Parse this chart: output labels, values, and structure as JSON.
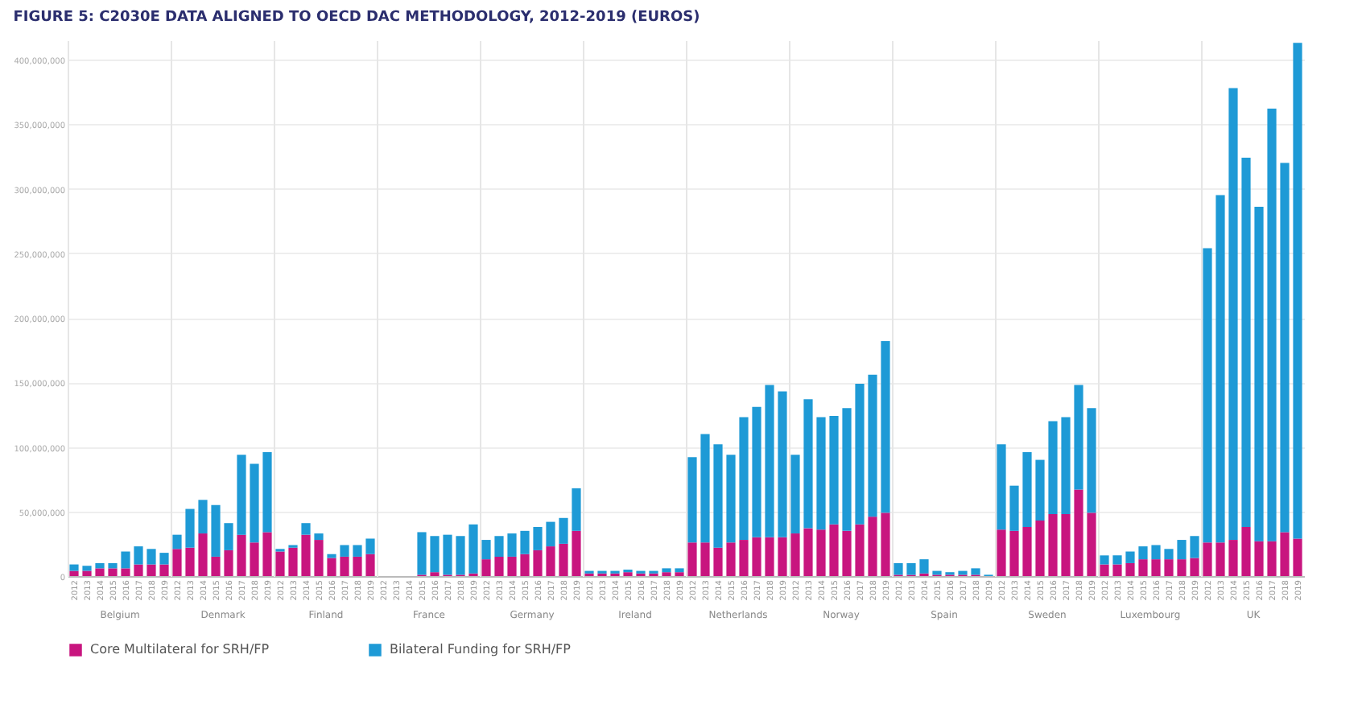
{
  "chart_data": [
    {
      "type": "bar",
      "title": "FIGURE 5: C2030E DATA ALIGNED TO OECD DAC METHODOLOGY, 2012-2019 (EUROS)",
      "xlabel": "Belgium",
      "categories": [
        "2012",
        "2013",
        "2014",
        "2015",
        "2016",
        "2017",
        "2018",
        "2019"
      ],
      "stacked": true,
      "grid": "y",
      "legend": "bottom",
      "ylim": [
        0,
        415000000
      ],
      "yticks": [
        0,
        {
          "value": 50000000,
          "label": "50,000,000"
        },
        {
          "value": 100000000,
          "label": "100,000,000"
        },
        {
          "value": 150000000,
          "label": "150,000,000"
        },
        {
          "value": 200000000,
          "label": "200,000,000"
        },
        {
          "value": 250000000,
          "label": "250,000,000"
        },
        {
          "value": 300000000,
          "label": "300,000,000"
        },
        {
          "value": 350000000,
          "label": "350,000,000"
        },
        {
          "value": 400000000,
          "label": "400,000,000"
        }
      ],
      "series": [
        {
          "name": "Core Multilateral for SRH/FP",
          "color": "#c8157f",
          "values": [
            4000000,
            4000000,
            6000000,
            6000000,
            6000000,
            9000000,
            9000000,
            9000000
          ]
        },
        {
          "name": "Bilateral Funding for SRH/FP",
          "color": "#1e9ad6",
          "values": [
            5000000,
            4000000,
            4000000,
            4000000,
            13000000,
            14000000,
            12000000,
            9000000
          ]
        }
      ]
    },
    {
      "type": "bar",
      "xlabel": "Denmark",
      "categories": [
        "2012",
        "2013",
        "2014",
        "2015",
        "2016",
        "2017",
        "2018",
        "2019"
      ],
      "stacked": true,
      "grid": "y",
      "tick_labels": "x",
      "ylim": [
        0,
        415000000
      ],
      "yticks": [
        0,
        50000000,
        100000000,
        150000000,
        200000000,
        250000000,
        300000000,
        350000000,
        400000000
      ],
      "series": [
        {
          "color": "#c8157f",
          "values": [
            21000000,
            22000000,
            33000000,
            15000000,
            20000000,
            32000000,
            26000000,
            34000000
          ]
        },
        {
          "color": "#1e9ad6",
          "values": [
            11000000,
            30000000,
            26000000,
            40000000,
            21000000,
            62000000,
            61000000,
            62000000
          ]
        }
      ]
    },
    {
      "type": "bar",
      "xlabel": "Finland",
      "categories": [
        "2012",
        "2013",
        "2014",
        "2015",
        "2016",
        "2017",
        "2018",
        "2019"
      ],
      "stacked": true,
      "grid": "y",
      "tick_labels": "x",
      "ylim": [
        0,
        415000000
      ],
      "yticks": [
        0,
        50000000,
        100000000,
        150000000,
        200000000,
        250000000,
        300000000,
        350000000,
        400000000
      ],
      "series": [
        {
          "color": "#c8157f",
          "values": [
            19000000,
            22000000,
            32000000,
            28000000,
            14000000,
            15000000,
            15000000,
            17000000
          ]
        },
        {
          "color": "#1e9ad6",
          "values": [
            2000000,
            2000000,
            9000000,
            5000000,
            3000000,
            9000000,
            9000000,
            12000000
          ]
        }
      ]
    },
    {
      "type": "bar",
      "xlabel": "France",
      "categories": [
        "2012",
        "2013",
        "2014",
        "2015",
        "2016",
        "2017",
        "2018",
        "2019"
      ],
      "stacked": true,
      "grid": "y",
      "tick_labels": "x",
      "ylim": [
        0,
        415000000
      ],
      "yticks": [
        0,
        50000000,
        100000000,
        150000000,
        200000000,
        250000000,
        300000000,
        350000000,
        400000000
      ],
      "series": [
        {
          "color": "#c8157f",
          "values": [
            0,
            0,
            0,
            1000000,
            3000000,
            1000000,
            1000000,
            2000000
          ]
        },
        {
          "color": "#1e9ad6",
          "values": [
            0,
            0,
            0,
            33000000,
            28000000,
            31000000,
            30000000,
            38000000
          ]
        }
      ]
    },
    {
      "type": "bar",
      "xlabel": "Germany",
      "categories": [
        "2012",
        "2013",
        "2014",
        "2015",
        "2016",
        "2017",
        "2018",
        "2019"
      ],
      "stacked": true,
      "grid": "y",
      "tick_labels": "x",
      "ylim": [
        0,
        415000000
      ],
      "yticks": [
        0,
        50000000,
        100000000,
        150000000,
        200000000,
        250000000,
        300000000,
        350000000,
        400000000
      ],
      "series": [
        {
          "color": "#c8157f",
          "values": [
            13000000,
            15000000,
            15000000,
            17000000,
            20000000,
            23000000,
            25000000,
            35000000
          ]
        },
        {
          "color": "#1e9ad6",
          "values": [
            15000000,
            16000000,
            18000000,
            18000000,
            18000000,
            19000000,
            20000000,
            33000000
          ]
        }
      ]
    },
    {
      "type": "bar",
      "xlabel": "Ireland",
      "categories": [
        "2012",
        "2013",
        "2014",
        "2015",
        "2016",
        "2017",
        "2018",
        "2019"
      ],
      "stacked": true,
      "grid": "y",
      "tick_labels": "x",
      "ylim": [
        0,
        415000000
      ],
      "yticks": [
        0,
        50000000,
        100000000,
        150000000,
        200000000,
        250000000,
        300000000,
        350000000,
        400000000
      ],
      "series": [
        {
          "color": "#c8157f",
          "values": [
            2000000,
            2000000,
            2000000,
            3000000,
            2000000,
            2000000,
            3000000,
            3000000
          ]
        },
        {
          "color": "#1e9ad6",
          "values": [
            2000000,
            2000000,
            2000000,
            2000000,
            2000000,
            2000000,
            3000000,
            3000000
          ]
        }
      ]
    },
    {
      "type": "bar",
      "xlabel": "Netherlands",
      "categories": [
        "2012",
        "2013",
        "2014",
        "2015",
        "2016",
        "2017",
        "2018",
        "2019"
      ],
      "stacked": true,
      "grid": "y",
      "tick_labels": "x",
      "ylim": [
        0,
        415000000
      ],
      "yticks": [
        0,
        50000000,
        100000000,
        150000000,
        200000000,
        250000000,
        300000000,
        350000000,
        400000000
      ],
      "series": [
        {
          "color": "#c8157f",
          "values": [
            26000000,
            26000000,
            22000000,
            26000000,
            28000000,
            30000000,
            30000000,
            30000000
          ]
        },
        {
          "color": "#1e9ad6",
          "values": [
            66000000,
            84000000,
            80000000,
            68000000,
            95000000,
            101000000,
            118000000,
            113000000
          ]
        }
      ]
    },
    {
      "type": "bar",
      "xlabel": "Norway",
      "categories": [
        "2012",
        "2013",
        "2014",
        "2015",
        "2016",
        "2017",
        "2018",
        "2019"
      ],
      "stacked": true,
      "grid": "y",
      "tick_labels": "x",
      "ylim": [
        0,
        415000000
      ],
      "yticks": [
        0,
        50000000,
        100000000,
        150000000,
        200000000,
        250000000,
        300000000,
        350000000,
        400000000
      ],
      "series": [
        {
          "color": "#c8157f",
          "values": [
            33000000,
            37000000,
            36000000,
            40000000,
            35000000,
            40000000,
            46000000,
            49000000
          ]
        },
        {
          "color": "#1e9ad6",
          "values": [
            61000000,
            100000000,
            87000000,
            84000000,
            95000000,
            109000000,
            110000000,
            133000000
          ]
        }
      ]
    },
    {
      "type": "bar",
      "xlabel": "Spain",
      "categories": [
        "2012",
        "2013",
        "2014",
        "2015",
        "2016",
        "2017",
        "2018",
        "2019"
      ],
      "stacked": true,
      "grid": "y",
      "tick_labels": "x",
      "ylim": [
        0,
        415000000
      ],
      "yticks": [
        0,
        50000000,
        100000000,
        150000000,
        200000000,
        250000000,
        300000000,
        350000000,
        400000000
      ],
      "series": [
        {
          "color": "#c8157f",
          "values": [
            1000000,
            1000000,
            2000000,
            1000000,
            1000000,
            1000000,
            1000000,
            0
          ]
        },
        {
          "color": "#1e9ad6",
          "values": [
            9000000,
            9000000,
            11000000,
            3000000,
            2000000,
            3000000,
            5000000,
            1000000
          ]
        }
      ]
    },
    {
      "type": "bar",
      "xlabel": "Sweden",
      "categories": [
        "2012",
        "2013",
        "2014",
        "2015",
        "2016",
        "2017",
        "2018",
        "2019"
      ],
      "stacked": true,
      "grid": "y",
      "tick_labels": "x",
      "ylim": [
        0,
        415000000
      ],
      "yticks": [
        0,
        50000000,
        100000000,
        150000000,
        200000000,
        250000000,
        300000000,
        350000000,
        400000000
      ],
      "series": [
        {
          "color": "#c8157f",
          "values": [
            36000000,
            35000000,
            38000000,
            43000000,
            48000000,
            48000000,
            67000000,
            49000000
          ]
        },
        {
          "color": "#1e9ad6",
          "values": [
            66000000,
            35000000,
            58000000,
            47000000,
            72000000,
            75000000,
            81000000,
            81000000
          ]
        }
      ]
    },
    {
      "type": "bar",
      "xlabel": "Luxembourg",
      "categories": [
        "2012",
        "2013",
        "2014",
        "2015",
        "2016",
        "2017",
        "2018",
        "2019"
      ],
      "stacked": true,
      "grid": "y",
      "tick_labels": "x",
      "ylim": [
        0,
        415000000
      ],
      "yticks": [
        0,
        50000000,
        100000000,
        150000000,
        200000000,
        250000000,
        300000000,
        350000000,
        400000000
      ],
      "series": [
        {
          "color": "#c8157f",
          "values": [
            9000000,
            9000000,
            10000000,
            13000000,
            13000000,
            13000000,
            13000000,
            14000000
          ]
        },
        {
          "color": "#1e9ad6",
          "values": [
            7000000,
            7000000,
            9000000,
            10000000,
            11000000,
            8000000,
            15000000,
            17000000
          ]
        }
      ]
    },
    {
      "type": "bar",
      "xlabel": "UK",
      "categories": [
        "2012",
        "2013",
        "2014",
        "2015",
        "2016",
        "2017",
        "2018",
        "2019"
      ],
      "stacked": true,
      "grid": "y",
      "tick_labels": "x",
      "ylim": [
        0,
        415000000
      ],
      "yticks": [
        0,
        50000000,
        100000000,
        150000000,
        200000000,
        250000000,
        300000000,
        350000000,
        400000000
      ],
      "series": [
        {
          "color": "#c8157f",
          "values": [
            26000000,
            26000000,
            28000000,
            38000000,
            27000000,
            27000000,
            34000000,
            29000000
          ]
        },
        {
          "color": "#1e9ad6",
          "values": [
            228000000,
            269000000,
            350000000,
            286000000,
            259000000,
            335000000,
            286000000,
            384000000
          ]
        }
      ]
    }
  ]
}
